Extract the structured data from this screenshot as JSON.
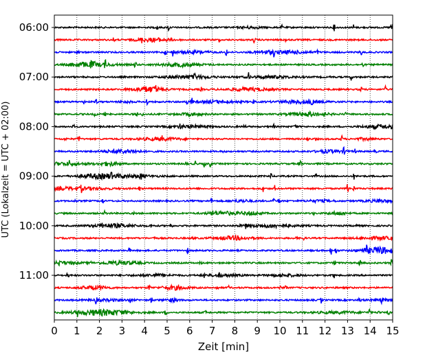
{
  "chart_data": {
    "type": "line",
    "xlabel": "Zeit  [min]",
    "ylabel": "UTC (Lokalzeit = UTC + 02:00)",
    "xlim": [
      0,
      15
    ],
    "xticks": [
      0,
      1,
      2,
      3,
      4,
      5,
      6,
      7,
      8,
      9,
      10,
      11,
      12,
      13,
      14,
      15
    ],
    "grid": "vertical-dotted",
    "time_start": "06:00",
    "row_interval_min": 15,
    "rows": 24,
    "yticks": [
      "06:00",
      "07:00",
      "08:00",
      "09:00",
      "10:00",
      "11:00"
    ],
    "colors": [
      "#000000",
      "#ff0000",
      "#0000ff",
      "#008000"
    ]
  }
}
